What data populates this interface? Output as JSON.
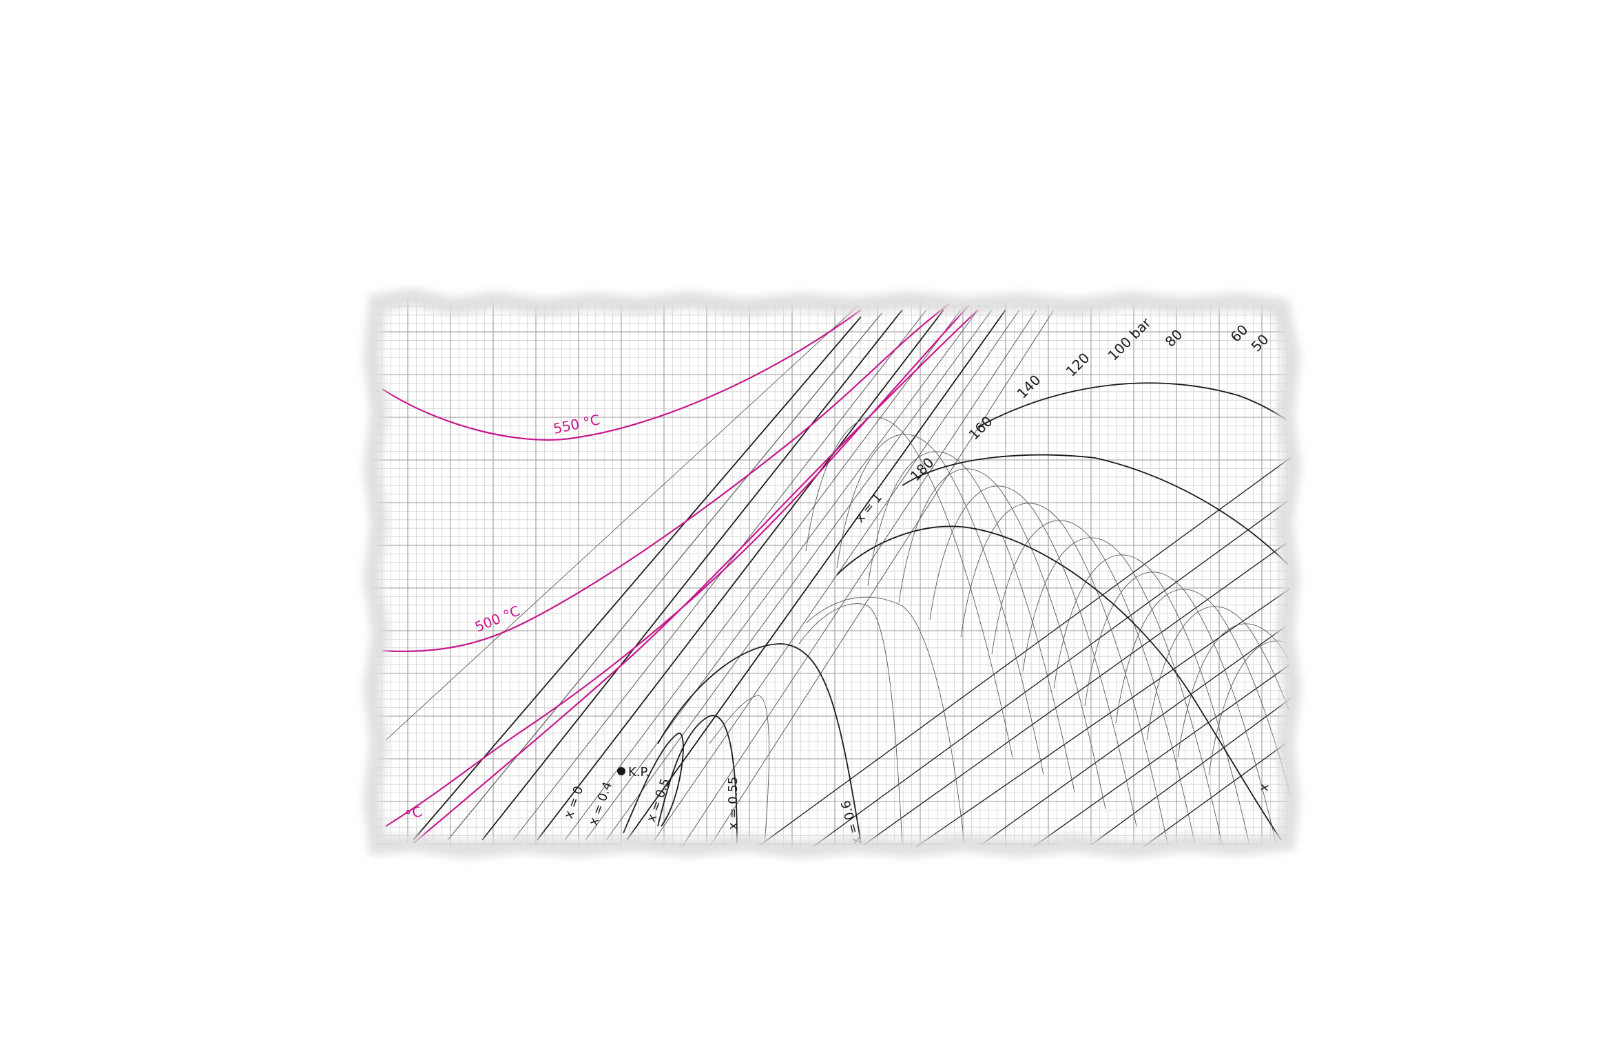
{
  "diagram": {
    "description_free": true,
    "colors": {
      "paper": "#ffffff",
      "grid_fine": "#d2d2d2",
      "grid_major": "#9a9a9a",
      "line_black": "#1a1a1a",
      "line_gray": "#5a5a5a",
      "isotherm": "#c8168c",
      "torn_edge": "#e8e8e8"
    },
    "isotherm_labels": [
      "550 °C",
      "500 °C",
      "°C"
    ],
    "pressure_labels": [
      "180",
      "160",
      "140",
      "120",
      "100 bar",
      "80",
      "60",
      "50"
    ],
    "quality_labels": [
      "x = 0",
      "x = 0.4",
      "x = 0.5",
      "x = 0.55",
      "x = 0.6",
      "x = 1",
      "x"
    ],
    "critical_point_label": "K.P."
  }
}
